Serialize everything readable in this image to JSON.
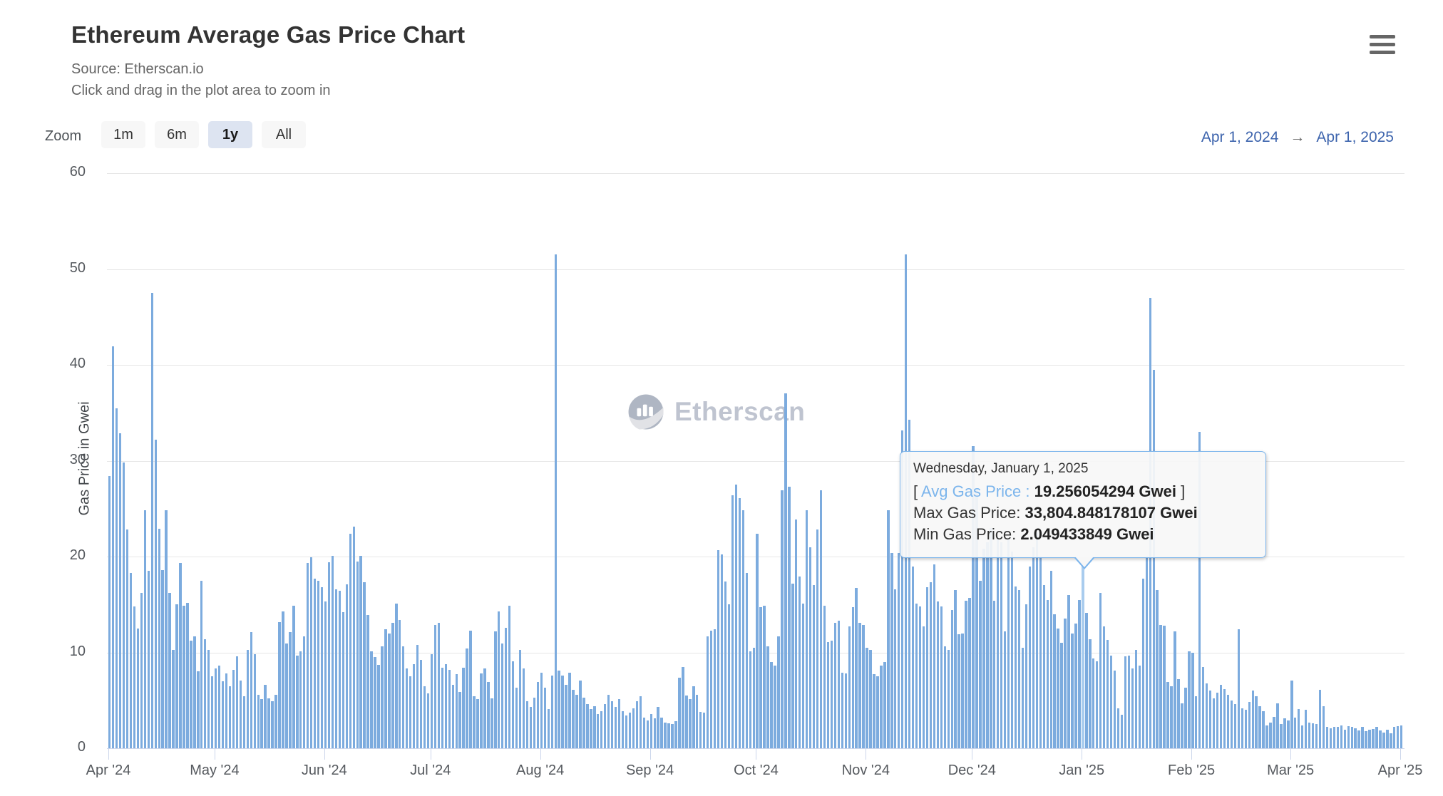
{
  "header": {
    "title": "Ethereum Average Gas Price Chart",
    "source_line": "Source: Etherscan.io",
    "hint_line": "Click and drag in the plot area to zoom in"
  },
  "controls": {
    "zoom_label": "Zoom",
    "buttons": [
      {
        "label": "1m",
        "active": false
      },
      {
        "label": "6m",
        "active": false
      },
      {
        "label": "1y",
        "active": true
      },
      {
        "label": "All",
        "active": false
      }
    ],
    "range_start": "Apr 1, 2024",
    "range_arrow": "→",
    "range_end": "Apr 1, 2025"
  },
  "watermark": {
    "text": "Etherscan"
  },
  "tooltip": {
    "date": "Wednesday, January 1, 2025",
    "bracket_open": "[ ",
    "avg_label": "Avg Gas Price :",
    "avg_value": "19.256054294 Gwei",
    "bracket_close": " ]",
    "max_label": "Max Gas Price:",
    "max_value": "33,804.848178107 Gwei",
    "min_label": "Min Gas Price:",
    "min_value": "2.049433849 Gwei"
  },
  "colors": {
    "bar": "#7cabde",
    "bar_highlight": "#a9ccee",
    "gridline": "#e6e6e6",
    "axis_line": "#ccd6eb",
    "range_text": "#3d64ad",
    "tooltip_border": "#7cb5ec",
    "tooltip_accent": "#7cb5ec",
    "button_active_bg": "#dde4f1",
    "button_bg": "#f7f7f7"
  },
  "chart_data": {
    "type": "bar",
    "title": "Ethereum Average Gas Price Chart",
    "xlabel": "",
    "ylabel": "Gas Price in Gwei",
    "ylim": [
      0,
      60
    ],
    "y_ticks": [
      0,
      10,
      20,
      30,
      40,
      50,
      60
    ],
    "grid": true,
    "legend": false,
    "start_date": "2024-04-01",
    "end_date": "2025-04-01",
    "months": [
      {
        "label": "Apr '24",
        "day": 0
      },
      {
        "label": "May '24",
        "day": 30
      },
      {
        "label": "Jun '24",
        "day": 61
      },
      {
        "label": "Jul '24",
        "day": 91
      },
      {
        "label": "Aug '24",
        "day": 122
      },
      {
        "label": "Sep '24",
        "day": 153
      },
      {
        "label": "Oct '24",
        "day": 183
      },
      {
        "label": "Nov '24",
        "day": 214
      },
      {
        "label": "Dec '24",
        "day": 244
      },
      {
        "label": "Jan '25",
        "day": 275
      },
      {
        "label": "Feb '25",
        "day": 306
      },
      {
        "label": "Mar '25",
        "day": 334
      },
      {
        "label": "Apr '25",
        "day": 365
      }
    ],
    "highlight_index": 275,
    "highlight_date": "Wednesday, January 1, 2025",
    "highlight_avg_gwei": 19.256054294,
    "highlight_max_gwei": 33804.848178107,
    "highlight_min_gwei": 2.049433849,
    "values": [
      28.4,
      41.9,
      35.5,
      32.9,
      29.8,
      22.8,
      18.3,
      14.8,
      12.5,
      16.2,
      24.8,
      18.5,
      47.5,
      32.2,
      22.9,
      18.6,
      24.8,
      16.2,
      10.3,
      15.0,
      19.3,
      14.9,
      15.2,
      11.2,
      11.7,
      8.0,
      17.5,
      11.4,
      10.3,
      7.5,
      8.3,
      8.6,
      7.0,
      7.8,
      6.5,
      8.2,
      9.6,
      7.1,
      5.4,
      10.3,
      12.1,
      9.8,
      5.6,
      5.1,
      6.6,
      5.2,
      4.9,
      5.6,
      13.2,
      14.3,
      10.9,
      12.1,
      14.9,
      9.7,
      10.1,
      11.7,
      19.3,
      19.9,
      17.7,
      17.5,
      16.8,
      15.3,
      19.4,
      20.1,
      16.6,
      16.4,
      14.2,
      17.1,
      22.4,
      23.1,
      19.5,
      20.1,
      17.3,
      13.9,
      10.1,
      9.5,
      8.7,
      10.6,
      12.4,
      12.0,
      13.1,
      15.1,
      13.4,
      10.6,
      8.3,
      7.5,
      8.8,
      10.8,
      9.2,
      6.5,
      5.7,
      9.8,
      12.9,
      13.1,
      8.4,
      8.8,
      8.2,
      6.6,
      7.7,
      5.9,
      8.4,
      10.4,
      12.3,
      5.4,
      5.1,
      7.8,
      8.3,
      6.9,
      5.2,
      12.2,
      14.3,
      10.9,
      12.6,
      14.9,
      9.1,
      6.3,
      10.3,
      8.3,
      4.9,
      4.3,
      5.3,
      6.9,
      7.9,
      6.3,
      4.1,
      7.6,
      51.5,
      8.1,
      7.6,
      6.6,
      7.9,
      6.1,
      5.6,
      7.1,
      5.3,
      4.6,
      4.1,
      4.4,
      3.6,
      3.9,
      4.6,
      5.6,
      4.9,
      4.3,
      5.1,
      3.9,
      3.4,
      3.7,
      4.2,
      4.9,
      5.4,
      3.2,
      2.9,
      3.6,
      3.1,
      4.3,
      3.2,
      2.7,
      2.6,
      2.5,
      2.8,
      7.4,
      8.5,
      5.5,
      5.1,
      6.5,
      5.6,
      3.8,
      3.7,
      11.7,
      12.3,
      12.4,
      20.7,
      20.2,
      17.4,
      15.0,
      26.4,
      27.5,
      26.1,
      24.8,
      18.3,
      10.1,
      10.5,
      22.4,
      14.7,
      14.9,
      10.6,
      9.0,
      8.6,
      11.7,
      26.9,
      37.0,
      27.3,
      17.2,
      23.9,
      17.9,
      15.1,
      24.8,
      21.0,
      17.0,
      22.8,
      26.9,
      14.9,
      11.1,
      11.2,
      13.1,
      13.3,
      7.9,
      7.8,
      12.7,
      14.7,
      16.7,
      13.1,
      12.9,
      10.5,
      10.3,
      7.7,
      7.5,
      8.6,
      9.0,
      24.8,
      20.4,
      16.6,
      20.4,
      33.2,
      51.5,
      34.3,
      19.0,
      15.1,
      14.8,
      12.7,
      16.8,
      17.3,
      19.2,
      15.3,
      14.8,
      10.6,
      10.3,
      14.4,
      16.5,
      11.9,
      12.0,
      15.4,
      15.7,
      31.5,
      27.0,
      17.5,
      20.8,
      21.5,
      23.0,
      15.4,
      22.0,
      21.5,
      12.2,
      21.8,
      20.5,
      16.9,
      16.5,
      10.5,
      15.0,
      19.0,
      21.0,
      22.5,
      20.0,
      17.0,
      15.5,
      18.5,
      14.0,
      12.5,
      11.0,
      13.5,
      16.0,
      12.0,
      13.0,
      15.5,
      19.256054294,
      14.1,
      11.4,
      9.4,
      9.1,
      16.2,
      12.7,
      11.3,
      9.7,
      8.1,
      4.2,
      3.5,
      9.6,
      9.7,
      8.3,
      10.3,
      8.6,
      17.7,
      20.0,
      47.0,
      39.5,
      16.5,
      12.9,
      12.8,
      6.9,
      6.5,
      12.2,
      7.2,
      4.7,
      6.3,
      10.1,
      10.0,
      5.4,
      33.0,
      8.5,
      6.8,
      6.0,
      5.2,
      5.8,
      6.6,
      6.2,
      5.6,
      5.0,
      4.6,
      12.4,
      4.2,
      4.0,
      4.8,
      6.0,
      5.4,
      4.4,
      3.9,
      2.4,
      2.7,
      3.3,
      4.7,
      2.5,
      3.1,
      2.9,
      7.1,
      3.2,
      4.1,
      2.4,
      4.0,
      2.7,
      2.6,
      2.5,
      6.1,
      4.4,
      2.2,
      2.1,
      2.2,
      2.2,
      2.4,
      1.9,
      2.3,
      2.2,
      2.1,
      1.85,
      2.2,
      1.8,
      1.9,
      2.0,
      2.2,
      1.85,
      1.65,
      1.95,
      1.6,
      2.2,
      2.3,
      2.4
    ]
  }
}
